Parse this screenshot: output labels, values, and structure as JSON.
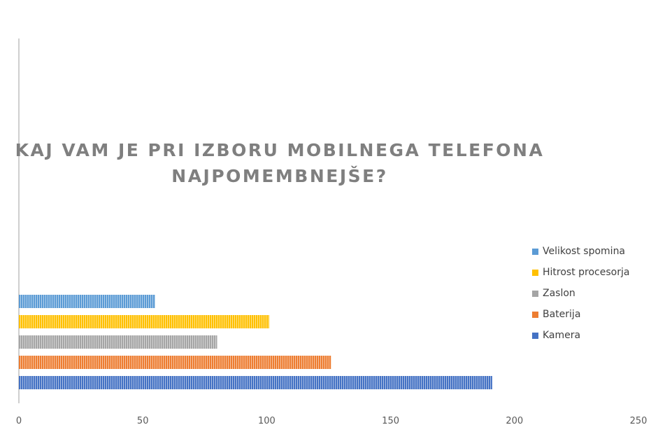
{
  "chart_data": {
    "type": "bar",
    "orientation": "horizontal",
    "title": "KAJ VAM JE PRI IZBORU MOBILNEGA TELEFONA NAJPOMEMBNEJŠE?",
    "title_lines": [
      "KAJ VAM JE PRI IZBORU MOBILNEGA TELEFONA",
      "NAJPOMEMBNEJŠE?"
    ],
    "xlim": [
      0,
      250
    ],
    "x_ticks": [
      0,
      50,
      100,
      150,
      200,
      250
    ],
    "x_tick_labels": [
      "0",
      "50",
      "100",
      "150",
      "200",
      "250"
    ],
    "grid": false,
    "legend_position": "right",
    "series": [
      {
        "name": "Kamera",
        "value": 191,
        "color": "#4472c4"
      },
      {
        "name": "Baterija",
        "value": 126,
        "color": "#ed7d31"
      },
      {
        "name": "Zaslon",
        "value": 80,
        "color": "#a5a5a5"
      },
      {
        "name": "Hitrost procesorja",
        "value": 101,
        "color": "#ffc000"
      },
      {
        "name": "Velikost spomina",
        "value": 55,
        "color": "#5b9bd5"
      }
    ]
  }
}
